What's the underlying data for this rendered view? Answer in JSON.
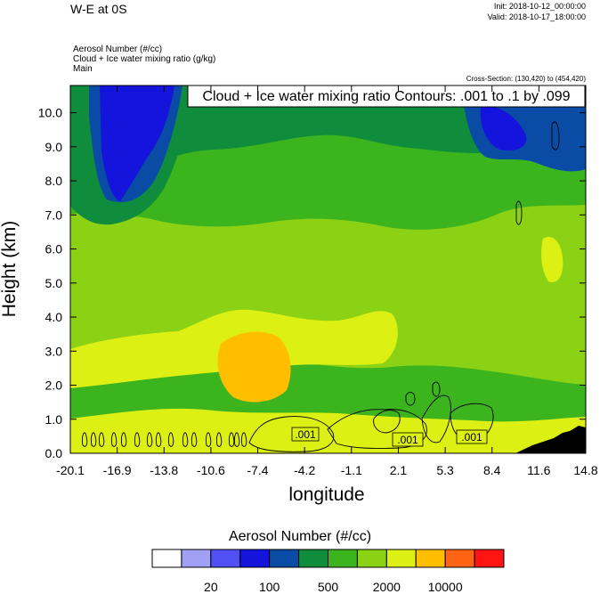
{
  "header": {
    "title": "W-E at 0S",
    "init": "Init: 2018-10-12_00:00:00",
    "valid": "Valid: 2018-10-17_18:00:00",
    "fields": [
      "Aerosol Number   (#/cc)",
      "Cloud + Ice water mixing ratio   (g/kg)",
      "Main"
    ],
    "cross_section": "Cross-Section: (130,420) to (454,420)"
  },
  "chart_data": {
    "type": "heatmap",
    "title": "W-E at 0S",
    "xlabel": "longitude",
    "ylabel": "Height (km)",
    "x_ticks": [
      "-20.1",
      "-16.9",
      "-13.8",
      "-10.6",
      "-7.4",
      "-4.2",
      "-1.1",
      "2.1",
      "5.3",
      "8.4",
      "11.6",
      "14.8"
    ],
    "y_ticks": [
      "0.0",
      "1.0",
      "2.0",
      "3.0",
      "4.0",
      "5.0",
      "6.0",
      "7.0",
      "8.0",
      "9.0",
      "10.0"
    ],
    "xlim": [
      -20.1,
      14.8
    ],
    "ylim": [
      0.0,
      10.8
    ],
    "contour_label": "Cloud + Ice water mixing ratio Contours: .001 to .1 by .099",
    "contour_line_labels": [
      ".001",
      ".001",
      ".001"
    ],
    "colorbar": {
      "title": "Aerosol Number  (#/cc)",
      "tick_labels": [
        "20",
        "100",
        "500",
        "2000",
        "10000"
      ],
      "colors": [
        "#ffffff",
        "#a0a0f5",
        "#5050f5",
        "#1414dc",
        "#0a4ba5",
        "#0f8c3c",
        "#3cb41e",
        "#8cd214",
        "#dcf014",
        "#ffbe00",
        "#ff6414",
        "#ff1414"
      ]
    },
    "field_colors": {
      "background": "#8cd214",
      "blue_core": "#1414dc",
      "navy": "#0a4ba5",
      "dark_green": "#0f8c3c",
      "green": "#3cb41e",
      "yellow": "#dcf014",
      "orange": "#ffbe00",
      "terrain": "#000000"
    }
  }
}
